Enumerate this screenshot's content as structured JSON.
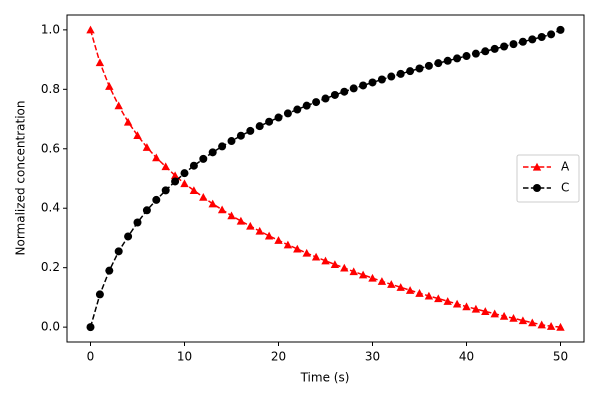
{
  "chart_data": {
    "type": "line",
    "xlabel": "Time (s)",
    "ylabel": "Normalized concentration",
    "x": [
      0,
      1,
      2,
      3,
      4,
      5,
      6,
      7,
      8,
      9,
      10,
      11,
      12,
      13,
      14,
      15,
      16,
      17,
      18,
      19,
      20,
      21,
      22,
      23,
      24,
      25,
      26,
      27,
      28,
      29,
      30,
      31,
      32,
      33,
      34,
      35,
      36,
      37,
      38,
      39,
      40,
      41,
      42,
      43,
      44,
      45,
      46,
      47,
      48,
      49,
      50
    ],
    "series": [
      {
        "name": "A",
        "color": "#ff0000",
        "marker": "triangle",
        "linestyle": "dashed",
        "values": [
          1.0,
          0.89,
          0.81,
          0.745,
          0.69,
          0.645,
          0.605,
          0.57,
          0.54,
          0.51,
          0.483,
          0.46,
          0.437,
          0.415,
          0.395,
          0.375,
          0.357,
          0.34,
          0.323,
          0.307,
          0.292,
          0.277,
          0.263,
          0.249,
          0.236,
          0.223,
          0.211,
          0.199,
          0.187,
          0.176,
          0.165,
          0.154,
          0.144,
          0.134,
          0.124,
          0.114,
          0.105,
          0.096,
          0.087,
          0.078,
          0.069,
          0.061,
          0.053,
          0.045,
          0.037,
          0.03,
          0.022,
          0.015,
          0.008,
          0.003,
          0
        ]
      },
      {
        "name": "C",
        "color": "#000000",
        "marker": "circle",
        "linestyle": "dashed",
        "values": [
          0,
          0.11,
          0.19,
          0.255,
          0.305,
          0.352,
          0.393,
          0.428,
          0.46,
          0.49,
          0.518,
          0.543,
          0.566,
          0.588,
          0.608,
          0.626,
          0.644,
          0.66,
          0.676,
          0.691,
          0.705,
          0.719,
          0.732,
          0.745,
          0.757,
          0.769,
          0.781,
          0.792,
          0.803,
          0.813,
          0.823,
          0.833,
          0.843,
          0.852,
          0.861,
          0.87,
          0.879,
          0.888,
          0.896,
          0.904,
          0.912,
          0.92,
          0.928,
          0.936,
          0.944,
          0.952,
          0.96,
          0.968,
          0.976,
          0.985,
          1.0
        ]
      }
    ],
    "xlim": [
      -2.5,
      52.5
    ],
    "xticks": [
      0,
      10,
      20,
      30,
      40,
      50
    ],
    "ylim": [
      -0.05,
      1.05
    ],
    "yticks": [
      {
        "value": 0,
        "label": "0.0"
      },
      0.2,
      0.4,
      0.6,
      0.8,
      {
        "value": 1,
        "label": "1.0"
      }
    ],
    "grid": false,
    "legend": "center right"
  }
}
